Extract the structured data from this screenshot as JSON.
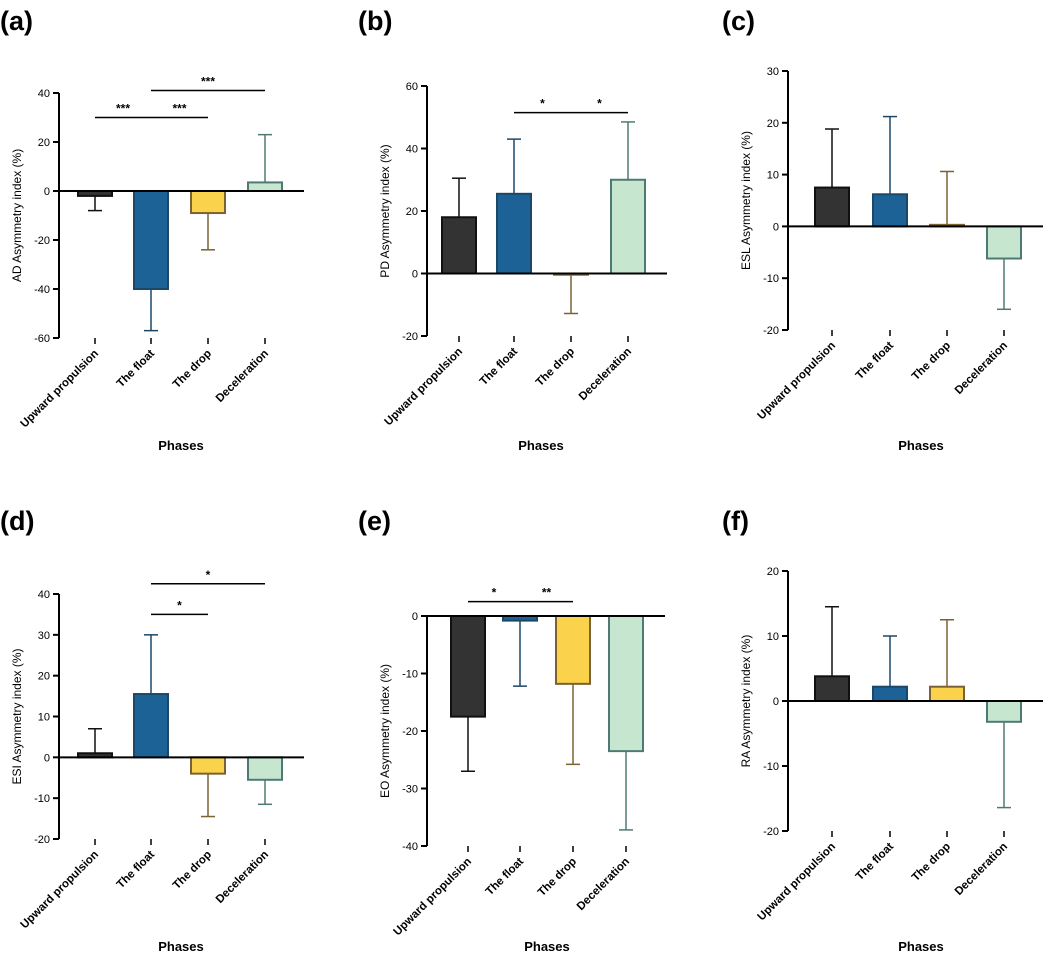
{
  "colors": {
    "upward_propulsion": "#333333",
    "the_float": "#1c6296",
    "the_drop": "#fbd24c",
    "deceleration": "#c7e6cf",
    "err_upward_propulsion": "#111111",
    "err_the_float": "#1c4868",
    "err_the_drop": "#7a6234",
    "err_deceleration": "#4f7a74"
  },
  "chart_data": [
    {
      "type": "bar",
      "panel": "(a)",
      "categories": [
        "Upward propulsion",
        "The float",
        "The drop",
        "Deceleration"
      ],
      "values": [
        -2,
        -40,
        -9,
        3.5
      ],
      "errors": [
        6,
        17,
        15,
        19.5
      ],
      "ylabel": "AD Asymmetry index (%)",
      "xlabel": "Phases",
      "ylim": [
        -60,
        40
      ],
      "yticks": [
        40,
        20,
        0,
        -20,
        -40,
        -60
      ],
      "tick_labels": [
        "40",
        "20",
        "0",
        "-20",
        "-40",
        "-60"
      ],
      "significance": [
        {
          "from": 0,
          "to": 1,
          "label": "***",
          "level": 30
        },
        {
          "from": 1,
          "to": 2,
          "label": "***",
          "level": 30
        },
        {
          "from": 1,
          "to": 3,
          "label": "***",
          "level": 41
        }
      ]
    },
    {
      "type": "bar",
      "panel": "(b)",
      "categories": [
        "Upward propulsion",
        "The float",
        "The drop",
        "Deceleration"
      ],
      "values": [
        18,
        25.5,
        -0.3,
        30
      ],
      "errors": [
        12.5,
        17.5,
        12.5,
        18.5
      ],
      "ylabel": "PD Asymmetry index (%)",
      "xlabel": "Phases",
      "ylim": [
        -20,
        60
      ],
      "yticks": [
        60,
        40,
        20,
        0,
        -20
      ],
      "tick_labels": [
        "60",
        "40",
        "20",
        "0",
        "-20"
      ],
      "significance": [
        {
          "from": 1,
          "to": 2,
          "label": "*",
          "level": 51.5
        },
        {
          "from": 2,
          "to": 3,
          "label": "*",
          "level": 51.5
        }
      ]
    },
    {
      "type": "bar",
      "panel": "(c)",
      "categories": [
        "Upward propulsion",
        "The float",
        "The drop",
        "Deceleration"
      ],
      "values": [
        7.5,
        6.2,
        0.3,
        -6.2
      ],
      "errors": [
        11.3,
        15,
        10.3,
        9.8
      ],
      "ylabel": "ESL Asymmetry index (%)",
      "xlabel": "Phases",
      "ylim": [
        -20,
        30
      ],
      "yticks": [
        30,
        20,
        10,
        0,
        -10,
        -20
      ],
      "tick_labels": [
        "30",
        "20",
        "10",
        "0",
        "-10",
        "-20"
      ],
      "significance": []
    },
    {
      "type": "bar",
      "panel": "(d)",
      "categories": [
        "Upward propulsion",
        "The float",
        "The drop",
        "Deceleration"
      ],
      "values": [
        1,
        15.5,
        -4,
        -5.5
      ],
      "errors": [
        6,
        14.5,
        10.5,
        6
      ],
      "ylabel": "ESI Asymmetry index (%)",
      "xlabel": "Phases",
      "ylim": [
        -20,
        40
      ],
      "yticks": [
        40,
        30,
        20,
        10,
        0,
        -10,
        -20
      ],
      "tick_labels": [
        "40",
        "30",
        "20",
        "10",
        "0",
        "-10",
        "-20"
      ],
      "significance": [
        {
          "from": 1,
          "to": 2,
          "label": "*",
          "level": 35
        },
        {
          "from": 1,
          "to": 3,
          "label": "*",
          "level": 42.5
        }
      ]
    },
    {
      "type": "bar",
      "panel": "(e)",
      "categories": [
        "Upward propulsion",
        "The float",
        "The drop",
        "Deceleration"
      ],
      "values": [
        -17.5,
        -0.8,
        -11.8,
        -23.5
      ],
      "errors": [
        9.5,
        11.4,
        14,
        13.7
      ],
      "ylabel": "EO Asymmetry index (%)",
      "xlabel": "Phases",
      "ylim": [
        -40,
        0
      ],
      "yticks": [
        0,
        -10,
        -20,
        -30,
        -40
      ],
      "tick_labels": [
        "0",
        "-10",
        "-20",
        "-30",
        "-40"
      ],
      "significance": [
        {
          "from": 0,
          "to": 1,
          "label": "*",
          "level": 2.5
        },
        {
          "from": 1,
          "to": 2,
          "label": "**",
          "level": 2.5
        }
      ]
    },
    {
      "type": "bar",
      "panel": "(f)",
      "categories": [
        "Upward propulsion",
        "The float",
        "The drop",
        "Deceleration"
      ],
      "values": [
        3.8,
        2.2,
        2.2,
        -3.2
      ],
      "errors": [
        10.7,
        7.8,
        10.3,
        13.2
      ],
      "ylabel": "RA Asymmetry index (%)",
      "xlabel": "Phases",
      "ylim": [
        -20,
        20
      ],
      "yticks": [
        20,
        10,
        0,
        -10,
        -20
      ],
      "tick_labels": [
        "20",
        "10",
        "0",
        "-10",
        "-20"
      ],
      "significance": []
    }
  ]
}
